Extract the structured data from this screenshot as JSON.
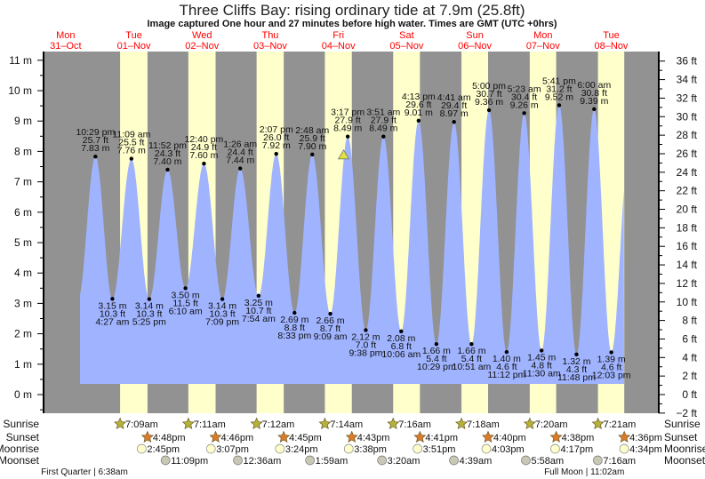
{
  "title": "Three Cliffs Bay: rising  ordinary tide at 7.9m (25.8ft)",
  "subtitle": "Image captured One hour and 27 minutes before high water. Times are GMT (UTC +0hrs)",
  "colors": {
    "night": "#929292",
    "day": "#ffffcc",
    "water": "#9fb3ff",
    "day_label": "#ff0000",
    "sunrise": "#b5b23a",
    "sunset": "#dd7a2c",
    "moonrise": "#ffffcc",
    "moonset": "#c8c8b4",
    "marker": "#e0e040"
  },
  "chart_data": {
    "type": "area",
    "title": "Three Cliffs Bay: rising  ordinary tide at 7.9m (25.8ft)",
    "ylabel_left": "m",
    "ylabel_right": "ft",
    "ylim_m": [
      -0.61,
      11.3
    ],
    "yticks_m": [
      "0 m",
      "1 m",
      "2 m",
      "3 m",
      "4 m",
      "5 m",
      "6 m",
      "7 m",
      "8 m",
      "9 m",
      "10 m",
      "11 m"
    ],
    "yticks_ft": [
      "−2 ft",
      "0 ft",
      "2 ft",
      "4 ft",
      "6 ft",
      "8 ft",
      "10 ft",
      "12 ft",
      "14 ft",
      "16 ft",
      "18 ft",
      "20 ft",
      "22 ft",
      "24 ft",
      "26 ft",
      "28 ft",
      "30 ft",
      "32 ft",
      "34 ft",
      "36 ft"
    ],
    "days": [
      {
        "dow": "Mon",
        "date": "31–Oct"
      },
      {
        "dow": "Tue",
        "date": "01–Nov"
      },
      {
        "dow": "Wed",
        "date": "02–Nov"
      },
      {
        "dow": "Thu",
        "date": "03–Nov"
      },
      {
        "dow": "Fri",
        "date": "04–Nov"
      },
      {
        "dow": "Sat",
        "date": "05–Nov"
      },
      {
        "dow": "Sun",
        "date": "06–Nov"
      },
      {
        "dow": "Mon",
        "date": "07–Nov"
      },
      {
        "dow": "Tue",
        "date": "08–Nov"
      }
    ],
    "extremes": [
      {
        "type": "high",
        "day": 0,
        "time": "10:29 pm",
        "m": "7.83 m",
        "ft": "25.7 ft",
        "value": 7.83
      },
      {
        "type": "low",
        "day": 1,
        "time": "4:27 am",
        "m": "3.15 m",
        "ft": "10.3 ft",
        "value": 3.15
      },
      {
        "type": "high",
        "day": 1,
        "time": "11:09 am",
        "m": "7.76 m",
        "ft": "25.5 ft",
        "value": 7.76
      },
      {
        "type": "low",
        "day": 1,
        "time": "5:25 pm",
        "m": "3.14 m",
        "ft": "10.3 ft",
        "value": 3.14
      },
      {
        "type": "high",
        "day": 1,
        "time": "11:52 pm",
        "m": "7.40 m",
        "ft": "24.3 ft",
        "value": 7.4
      },
      {
        "type": "low",
        "day": 2,
        "time": "6:10 am",
        "m": "3.50 m",
        "ft": "11.5 ft",
        "value": 3.5
      },
      {
        "type": "high",
        "day": 2,
        "time": "12:40 pm",
        "m": "7.60 m",
        "ft": "24.9 ft",
        "value": 7.6
      },
      {
        "type": "low",
        "day": 2,
        "time": "7:09 pm",
        "m": "3.14 m",
        "ft": "10.3 ft",
        "value": 3.14
      },
      {
        "type": "high",
        "day": 3,
        "time": "1:26 am",
        "m": "7.44 m",
        "ft": "24.4 ft",
        "value": 7.44
      },
      {
        "type": "low",
        "day": 3,
        "time": "7:54 am",
        "m": "3.25 m",
        "ft": "10.7 ft",
        "value": 3.25
      },
      {
        "type": "high",
        "day": 3,
        "time": "2:07 pm",
        "m": "7.92 m",
        "ft": "26.0 ft",
        "value": 7.92
      },
      {
        "type": "low",
        "day": 3,
        "time": "8:33 pm",
        "m": "2.69 m",
        "ft": "8.8 ft",
        "value": 2.69
      },
      {
        "type": "high",
        "day": 4,
        "time": "2:48 am",
        "m": "7.90 m",
        "ft": "25.9 ft",
        "value": 7.9
      },
      {
        "type": "low",
        "day": 4,
        "time": "9:09 am",
        "m": "2.66 m",
        "ft": "8.7 ft",
        "value": 2.66
      },
      {
        "type": "high",
        "day": 4,
        "time": "3:17 pm",
        "m": "8.49 m",
        "ft": "27.9 ft",
        "value": 8.49
      },
      {
        "type": "low",
        "day": 4,
        "time": "9:38 pm",
        "m": "2.12 m",
        "ft": "7.0 ft",
        "value": 2.12
      },
      {
        "type": "high",
        "day": 5,
        "time": "3:51 am",
        "m": "8.49 m",
        "ft": "27.9 ft",
        "value": 8.49
      },
      {
        "type": "low",
        "day": 5,
        "time": "10:06 am",
        "m": "2.08 m",
        "ft": "6.8 ft",
        "value": 2.08
      },
      {
        "type": "high",
        "day": 5,
        "time": "4:13 pm",
        "m": "9.01 m",
        "ft": "29.6 ft",
        "value": 9.01
      },
      {
        "type": "low",
        "day": 5,
        "time": "10:29 pm",
        "m": "1.66 m",
        "ft": "5.4 ft",
        "value": 1.66
      },
      {
        "type": "high",
        "day": 6,
        "time": "4:41 am",
        "m": "8.97 m",
        "ft": "29.4 ft",
        "value": 8.97
      },
      {
        "type": "low",
        "day": 6,
        "time": "10:51 am",
        "m": "1.66 m",
        "ft": "5.4 ft",
        "value": 1.66
      },
      {
        "type": "high",
        "day": 6,
        "time": "5:00 pm",
        "m": "9.36 m",
        "ft": "30.7 ft",
        "value": 9.36
      },
      {
        "type": "low",
        "day": 6,
        "time": "11:12 pm",
        "m": "1.40 m",
        "ft": "4.6 ft",
        "value": 1.4
      },
      {
        "type": "high",
        "day": 7,
        "time": "5:23 am",
        "m": "9.26 m",
        "ft": "30.4 ft",
        "value": 9.26
      },
      {
        "type": "low",
        "day": 7,
        "time": "11:30 am",
        "m": "1.45 m",
        "ft": "4.8 ft",
        "value": 1.45
      },
      {
        "type": "high",
        "day": 7,
        "time": "5:41 pm",
        "m": "9.52 m",
        "ft": "31.2 ft",
        "value": 9.52
      },
      {
        "type": "low",
        "day": 7,
        "time": "11:48 pm",
        "m": "1.32 m",
        "ft": "4.3 ft",
        "value": 1.32
      },
      {
        "type": "high",
        "day": 8,
        "time": "6:00 am",
        "m": "9.39 m",
        "ft": "30.8 ft",
        "value": 9.39
      },
      {
        "type": "low",
        "day": 8,
        "time": "12:03 pm",
        "m": "1.39 m",
        "ft": "4.6 ft",
        "value": 1.39
      }
    ],
    "current": {
      "day": 4,
      "time": "1:50 pm",
      "value": 7.9
    }
  },
  "rows": {
    "sunrise": "Sunrise",
    "sunset": "Sunset",
    "moonrise": "Moonrise",
    "moonset": "Moonset"
  },
  "sun": [
    {
      "day": 1,
      "rise": "7:09am",
      "set": "4:48pm"
    },
    {
      "day": 2,
      "rise": "7:11am",
      "set": "4:46pm"
    },
    {
      "day": 3,
      "rise": "7:12am",
      "set": "4:45pm"
    },
    {
      "day": 4,
      "rise": "7:14am",
      "set": "4:43pm"
    },
    {
      "day": 5,
      "rise": "7:16am",
      "set": "4:41pm"
    },
    {
      "day": 6,
      "rise": "7:18am",
      "set": "4:40pm"
    },
    {
      "day": 7,
      "rise": "7:20am",
      "set": "4:38pm"
    },
    {
      "day": 8,
      "rise": "7:21am",
      "set": "4:36pm"
    }
  ],
  "moonrise": [
    {
      "day": 1,
      "time": "2:45pm"
    },
    {
      "day": 2,
      "time": "3:07pm"
    },
    {
      "day": 3,
      "time": "3:24pm"
    },
    {
      "day": 4,
      "time": "3:38pm"
    },
    {
      "day": 5,
      "time": "3:51pm"
    },
    {
      "day": 6,
      "time": "4:03pm"
    },
    {
      "day": 7,
      "time": "4:17pm"
    },
    {
      "day": 8,
      "time": "4:34pm"
    }
  ],
  "moonset": [
    {
      "day": 1,
      "time": "11:09pm"
    },
    {
      "day": 3,
      "time": "12:36am"
    },
    {
      "day": 4,
      "time": "1:59am"
    },
    {
      "day": 5,
      "time": "3:20am"
    },
    {
      "day": 6,
      "time": "4:39am"
    },
    {
      "day": 7,
      "time": "5:58am"
    },
    {
      "day": 8,
      "time": "7:16am"
    }
  ],
  "phases": [
    {
      "day": 1,
      "name": "First Quarter",
      "time": "6:38am",
      "label": "First Quarter | 6:38am"
    },
    {
      "day": 8,
      "name": "Full Moon",
      "time": "11:02am",
      "label": "Full Moon | 11:02am"
    }
  ]
}
